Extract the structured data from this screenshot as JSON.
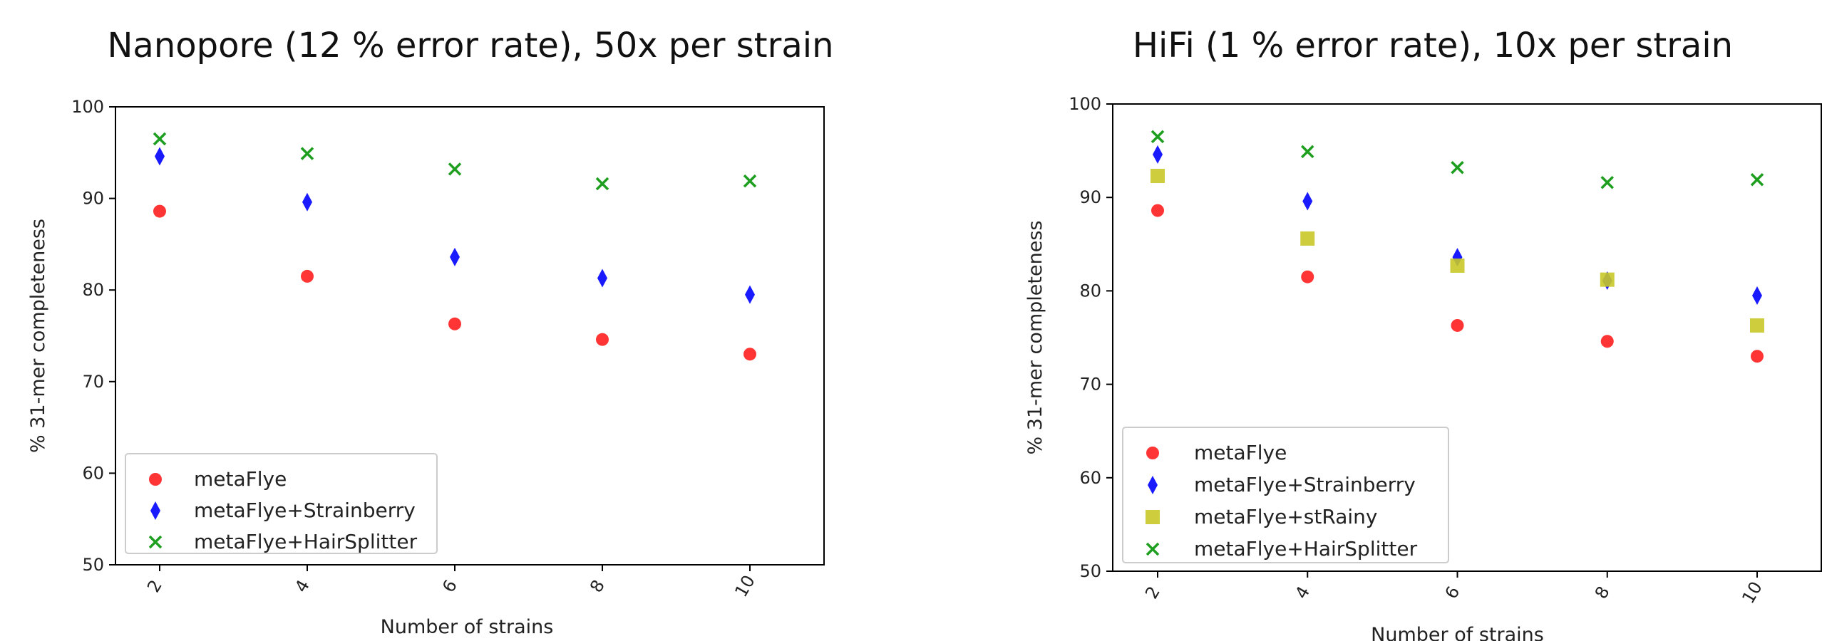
{
  "chart_data": [
    {
      "type": "scatter",
      "title": "Nanopore (12 % error rate), 50x per strain",
      "xlabel": "Number of strains",
      "ylabel": "% 31-mer completeness",
      "x_ticks": [
        "2",
        "4",
        "6",
        "8",
        "10"
      ],
      "y_ticks": [
        "50",
        "60",
        "70",
        "80",
        "90",
        "100"
      ],
      "ylim": [
        50,
        100
      ],
      "legend_position": "lower-left",
      "series": [
        {
          "name": "metaFlye",
          "marker": "circle",
          "color": "#ff2a2a",
          "x": [
            2,
            4,
            6,
            8,
            10
          ],
          "y": [
            88.6,
            81.5,
            76.3,
            74.6,
            73.0
          ]
        },
        {
          "name": "metaFlye+Strainberry",
          "marker": "diamond",
          "color": "#1a1aff",
          "x": [
            2,
            4,
            6,
            8,
            10
          ],
          "y": [
            94.6,
            89.6,
            83.6,
            81.3,
            79.5
          ]
        },
        {
          "name": "metaFlye+HairSplitter",
          "marker": "x",
          "color": "#1e9e1e",
          "x": [
            2,
            4,
            6,
            8,
            10
          ],
          "y": [
            96.5,
            94.9,
            93.2,
            91.6,
            91.9
          ]
        }
      ]
    },
    {
      "type": "scatter",
      "title": "HiFi (1 % error rate), 10x per strain",
      "xlabel": "Number of strains",
      "ylabel": "% 31-mer completeness",
      "x_ticks": [
        "2",
        "4",
        "6",
        "8",
        "10"
      ],
      "y_ticks": [
        "50",
        "60",
        "70",
        "80",
        "90",
        "100"
      ],
      "ylim": [
        50,
        100
      ],
      "legend_position": "lower-left",
      "series": [
        {
          "name": "metaFlye",
          "marker": "circle",
          "color": "#ff2a2a",
          "x": [
            2,
            4,
            6,
            8,
            10
          ],
          "y": [
            88.6,
            81.5,
            76.3,
            74.6,
            73.0
          ]
        },
        {
          "name": "metaFlye+Strainberry",
          "marker": "diamond",
          "color": "#1a1aff",
          "x": [
            2,
            4,
            6,
            8,
            10
          ],
          "y": [
            94.6,
            89.6,
            83.6,
            81.1,
            79.5
          ]
        },
        {
          "name": "metaFlye+stRainy",
          "marker": "square",
          "color": "#c8c828",
          "x": [
            2,
            4,
            6,
            8,
            10
          ],
          "y": [
            92.3,
            85.6,
            82.7,
            81.2,
            76.3
          ]
        },
        {
          "name": "metaFlye+HairSplitter",
          "marker": "x",
          "color": "#1e9e1e",
          "x": [
            2,
            4,
            6,
            8,
            10
          ],
          "y": [
            96.5,
            94.9,
            93.2,
            91.6,
            91.9
          ]
        }
      ]
    }
  ]
}
